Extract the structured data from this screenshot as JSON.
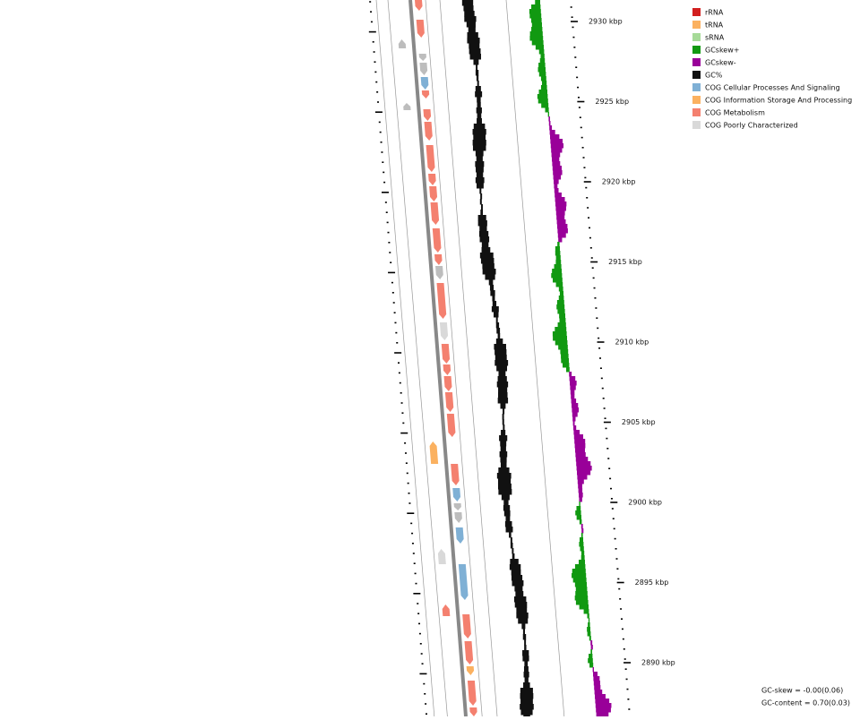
{
  "map": {
    "ruler_labels": [
      "2930 kbp",
      "2925 kbp",
      "2920 kbp",
      "2915 kbp",
      "2910 kbp",
      "2905 kbp",
      "2900 kbp",
      "2895 kbp",
      "2890 kbp"
    ],
    "legend": [
      {
        "label": "rRNA",
        "color": "#d21f1f"
      },
      {
        "label": "tRNA",
        "color": "#fbb160"
      },
      {
        "label": "sRNA",
        "color": "#a6da98"
      },
      {
        "label": "GCskew+",
        "color": "#119911"
      },
      {
        "label": "GCskew-",
        "color": "#990099"
      },
      {
        "label": "GC%",
        "color": "#111111"
      },
      {
        "label": "COG Cellular Processes And Signaling",
        "color": "#7fb0d5"
      },
      {
        "label": "COG Information Storage And Processing",
        "color": "#fbb160"
      },
      {
        "label": "COG Metabolism",
        "color": "#f4806f"
      },
      {
        "label": "COG Poorly Characterized",
        "color": "#d9d9d9"
      }
    ],
    "stats": [
      "GC-skew = -0.00(0.06)",
      "GC-content = 0.70(0.03)"
    ]
  }
}
